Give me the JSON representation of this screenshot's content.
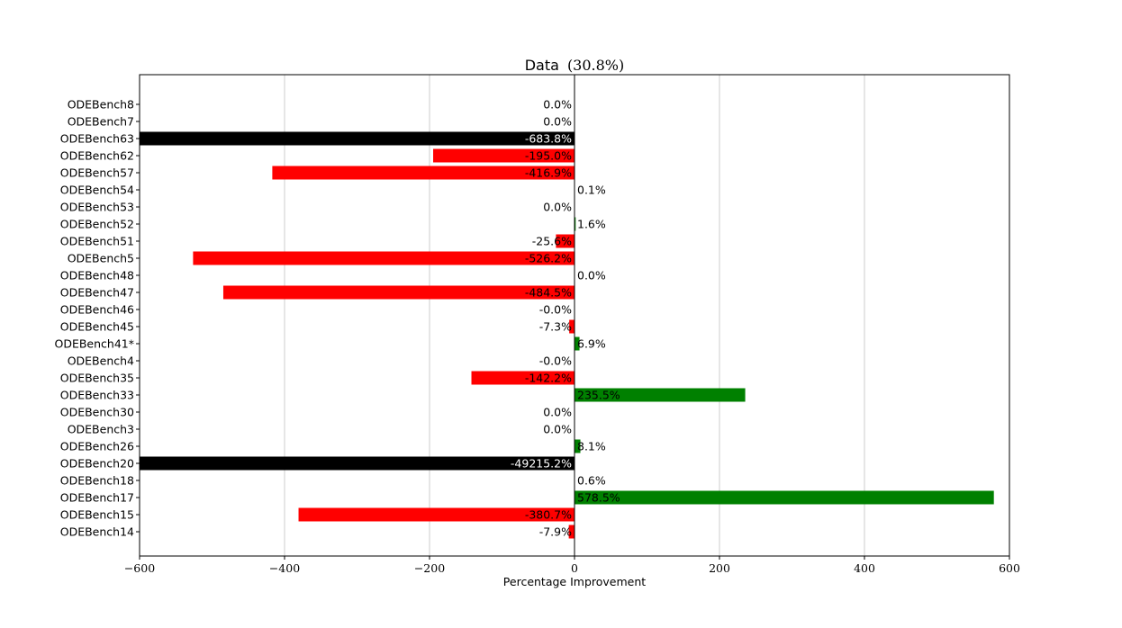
{
  "chart_data": {
    "type": "bar",
    "orientation": "horizontal",
    "title": "Data",
    "title_value": "(30.8%)",
    "xlabel": "Percentage Improvement",
    "ylabel": "",
    "xlim": [
      -600,
      600
    ],
    "xticks": [
      -600,
      -400,
      -200,
      0,
      200,
      400,
      600
    ],
    "xtick_labels": [
      "−600",
      "−400",
      "−200",
      "0",
      "200",
      "400",
      "600"
    ],
    "grid": "vertical",
    "categories": [
      "ODEBench8",
      "ODEBench7",
      "ODEBench63",
      "ODEBench62",
      "ODEBench57",
      "ODEBench54",
      "ODEBench53",
      "ODEBench52",
      "ODEBench51",
      "ODEBench5",
      "ODEBench48",
      "ODEBench47",
      "ODEBench46",
      "ODEBench45",
      "ODEBench41*",
      "ODEBench4",
      "ODEBench35",
      "ODEBench33",
      "ODEBench30",
      "ODEBench3",
      "ODEBench26",
      "ODEBench20",
      "ODEBench18",
      "ODEBench17",
      "ODEBench15",
      "ODEBench14"
    ],
    "values": [
      0.0,
      0.0,
      -683.8,
      -195.0,
      -416.9,
      0.1,
      0.0,
      1.6,
      -25.6,
      -526.2,
      0.0,
      -484.5,
      -0.0,
      -7.3,
      6.9,
      -0.0,
      -142.2,
      235.5,
      0.0,
      0.0,
      8.1,
      -49215.2,
      0.6,
      578.5,
      -380.7,
      -7.9
    ],
    "value_labels": [
      "0.0%",
      "0.0%",
      "-683.8%",
      "-195.0%",
      "-416.9%",
      "0.1%",
      "0.0%",
      "1.6%",
      "-25.6%",
      "-526.2%",
      "0.0%",
      "-484.5%",
      "-0.0%",
      "-7.3%",
      "6.9%",
      "-0.0%",
      "-142.2%",
      "235.5%",
      "0.0%",
      "0.0%",
      "8.1%",
      "-49215.2%",
      "0.6%",
      "578.5%",
      "-380.7%",
      "-7.9%"
    ],
    "colors": {
      "positive": "#008000",
      "negative": "#ff0000",
      "clipped": "#000000",
      "grid": "#cccccc",
      "axis": "#000000"
    }
  }
}
